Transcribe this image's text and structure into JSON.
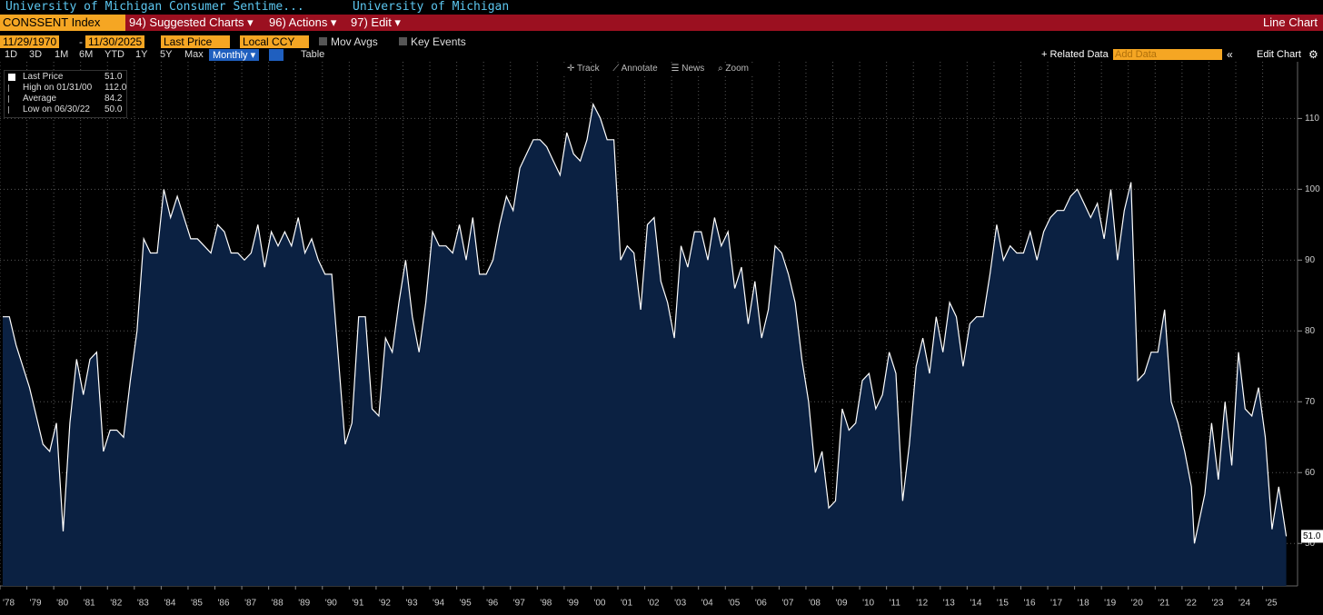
{
  "ui": {
    "title": "University of Michigan Consumer Sentime...",
    "source": "University of Michigan",
    "ticker": "CONSSENT Index",
    "menu": [
      "94) Suggested Charts ▾",
      "96) Actions ▾",
      "97) Edit ▾"
    ],
    "chart_kind": "Line Chart",
    "start_date": "11/29/1970",
    "date_sep": "-",
    "end_date": "11/30/2025",
    "field": "Last Price",
    "currency": "Local CCY",
    "mov_avgs": "Mov Avgs",
    "key_events": "Key Events",
    "ranges": [
      "1D",
      "3D",
      "1M",
      "6M",
      "YTD",
      "1Y",
      "5Y",
      "Max"
    ],
    "frequency": "Monthly ▾",
    "table": "Table",
    "related_data": "+ Related Data",
    "add_data": "Add Data",
    "edit_chart": "Edit Chart",
    "tools": [
      "Track",
      "Annotate",
      "News",
      "Zoom"
    ]
  },
  "chart_data": {
    "type": "area",
    "legend_stats": [
      {
        "label": "Last Price",
        "value": "51.0"
      },
      {
        "label": "High on 01/31/00",
        "value": "112.0"
      },
      {
        "label": "Average",
        "value": "84.2"
      },
      {
        "label": "Low on 06/30/22",
        "value": "50.0"
      }
    ],
    "last_value_label": "51.0",
    "color": "#ffffff",
    "fill": "#0b2142",
    "grid": true,
    "ylim": [
      44,
      118
    ],
    "yticks": [
      50,
      60,
      70,
      80,
      90,
      100,
      110
    ],
    "xlim": [
      1978.0,
      2026.3
    ],
    "xticks": [
      {
        "value": 1978,
        "label": "'78"
      },
      {
        "value": 1979,
        "label": "'79"
      },
      {
        "value": 1980,
        "label": "'80"
      },
      {
        "value": 1981,
        "label": "'81"
      },
      {
        "value": 1982,
        "label": "'82"
      },
      {
        "value": 1983,
        "label": "'83"
      },
      {
        "value": 1984,
        "label": "'84"
      },
      {
        "value": 1985,
        "label": "'85"
      },
      {
        "value": 1986,
        "label": "'86"
      },
      {
        "value": 1987,
        "label": "'87"
      },
      {
        "value": 1988,
        "label": "'88"
      },
      {
        "value": 1989,
        "label": "'89"
      },
      {
        "value": 1990,
        "label": "'90"
      },
      {
        "value": 1991,
        "label": "'91"
      },
      {
        "value": 1992,
        "label": "'92"
      },
      {
        "value": 1993,
        "label": "'93"
      },
      {
        "value": 1994,
        "label": "'94"
      },
      {
        "value": 1995,
        "label": "'95"
      },
      {
        "value": 1996,
        "label": "'96"
      },
      {
        "value": 1997,
        "label": "'97"
      },
      {
        "value": 1998,
        "label": "'98"
      },
      {
        "value": 1999,
        "label": "'99"
      },
      {
        "value": 2000,
        "label": "'00"
      },
      {
        "value": 2001,
        "label": "'01"
      },
      {
        "value": 2002,
        "label": "'02"
      },
      {
        "value": 2003,
        "label": "'03"
      },
      {
        "value": 2004,
        "label": "'04"
      },
      {
        "value": 2005,
        "label": "'05"
      },
      {
        "value": 2006,
        "label": "'06"
      },
      {
        "value": 2007,
        "label": "'07"
      },
      {
        "value": 2008,
        "label": "'08"
      },
      {
        "value": 2009,
        "label": "'09"
      },
      {
        "value": 2010,
        "label": "'10"
      },
      {
        "value": 2011,
        "label": "'11"
      },
      {
        "value": 2012,
        "label": "'12"
      },
      {
        "value": 2013,
        "label": "'13"
      },
      {
        "value": 2014,
        "label": "'14"
      },
      {
        "value": 2015,
        "label": "'15"
      },
      {
        "value": 2016,
        "label": "'16"
      },
      {
        "value": 2017,
        "label": "'17"
      },
      {
        "value": 2018,
        "label": "'18"
      },
      {
        "value": 2019,
        "label": "'19"
      },
      {
        "value": 2020,
        "label": "'20"
      },
      {
        "value": 2021,
        "label": "'21"
      },
      {
        "value": 2022,
        "label": "'22"
      },
      {
        "value": 2023,
        "label": "'23"
      },
      {
        "value": 2024,
        "label": "'24"
      },
      {
        "value": 2025,
        "label": "'25"
      }
    ],
    "x": [
      1978.1,
      1978.35,
      1978.6,
      1978.85,
      1979.1,
      1979.35,
      1979.6,
      1979.85,
      1980.1,
      1980.35,
      1980.6,
      1980.85,
      1981.1,
      1981.35,
      1981.6,
      1981.85,
      1982.1,
      1982.35,
      1982.6,
      1982.85,
      1983.1,
      1983.35,
      1983.6,
      1983.85,
      1984.1,
      1984.35,
      1984.6,
      1984.85,
      1985.1,
      1985.35,
      1985.6,
      1985.85,
      1986.1,
      1986.35,
      1986.6,
      1986.85,
      1987.1,
      1987.35,
      1987.6,
      1987.85,
      1988.1,
      1988.35,
      1988.6,
      1988.85,
      1989.1,
      1989.35,
      1989.6,
      1989.85,
      1990.1,
      1990.35,
      1990.6,
      1990.85,
      1991.1,
      1991.35,
      1991.6,
      1991.85,
      1992.1,
      1992.35,
      1992.6,
      1992.85,
      1993.1,
      1993.35,
      1993.6,
      1993.85,
      1994.1,
      1994.35,
      1994.6,
      1994.85,
      1995.1,
      1995.35,
      1995.6,
      1995.85,
      1996.1,
      1996.35,
      1996.6,
      1996.85,
      1997.1,
      1997.35,
      1997.6,
      1997.85,
      1998.1,
      1998.35,
      1998.6,
      1998.85,
      1999.1,
      1999.35,
      1999.6,
      1999.85,
      2000.08,
      2000.35,
      2000.6,
      2000.85,
      2001.1,
      2001.35,
      2001.6,
      2001.85,
      2002.1,
      2002.35,
      2002.6,
      2002.85,
      2003.1,
      2003.35,
      2003.6,
      2003.85,
      2004.1,
      2004.35,
      2004.6,
      2004.85,
      2005.1,
      2005.35,
      2005.6,
      2005.85,
      2006.1,
      2006.35,
      2006.6,
      2006.85,
      2007.1,
      2007.35,
      2007.6,
      2007.85,
      2008.1,
      2008.35,
      2008.6,
      2008.85,
      2009.1,
      2009.35,
      2009.6,
      2009.85,
      2010.1,
      2010.35,
      2010.6,
      2010.85,
      2011.1,
      2011.35,
      2011.6,
      2011.85,
      2012.1,
      2012.35,
      2012.6,
      2012.85,
      2013.1,
      2013.35,
      2013.6,
      2013.85,
      2014.1,
      2014.35,
      2014.6,
      2014.85,
      2015.1,
      2015.35,
      2015.6,
      2015.85,
      2016.1,
      2016.35,
      2016.6,
      2016.85,
      2017.1,
      2017.35,
      2017.6,
      2017.85,
      2018.1,
      2018.35,
      2018.6,
      2018.85,
      2019.1,
      2019.35,
      2019.6,
      2019.85,
      2020.1,
      2020.35,
      2020.6,
      2020.85,
      2021.1,
      2021.35,
      2021.6,
      2021.85,
      2022.1,
      2022.35,
      2022.46,
      2022.85,
      2023.1,
      2023.35,
      2023.6,
      2023.85,
      2024.1,
      2024.35,
      2024.6,
      2024.85,
      2025.1,
      2025.35,
      2025.6,
      2025.88
    ],
    "values": [
      82,
      82,
      78,
      75,
      72,
      68,
      64,
      63,
      67,
      51.7,
      67,
      76,
      71,
      76,
      77,
      63,
      66,
      66,
      65,
      73,
      80,
      93,
      91,
      91,
      100,
      96,
      99,
      96,
      93,
      93,
      92,
      91,
      95,
      94,
      91,
      91,
      90,
      91,
      95,
      89,
      94,
      92,
      94,
      92,
      96,
      91,
      93,
      90,
      88,
      88,
      76,
      64,
      67,
      82,
      82,
      69,
      68,
      79,
      77,
      84,
      90,
      82,
      77,
      84,
      94,
      92,
      92,
      91,
      95,
      90,
      96,
      88,
      88,
      90,
      95,
      99,
      97,
      103,
      105,
      107,
      107,
      106,
      104,
      102,
      108,
      105,
      104,
      107,
      112,
      110,
      107,
      107,
      90,
      92,
      91,
      83,
      95,
      96,
      87,
      84,
      79,
      92,
      89,
      94,
      94,
      90,
      96,
      92,
      94,
      86,
      89,
      81,
      87,
      79,
      83,
      92,
      91,
      88,
      84,
      76,
      70,
      60,
      63,
      55,
      56,
      69,
      66,
      67,
      73,
      74,
      69,
      71,
      77,
      74,
      56,
      64,
      75,
      79,
      74,
      82,
      77,
      84,
      82,
      75,
      81,
      82,
      82,
      88,
      95,
      90,
      92,
      91,
      91,
      94,
      90,
      94,
      96,
      97,
      97,
      99,
      100,
      98,
      96,
      98,
      93,
      100,
      90,
      97,
      101,
      73,
      74,
      77,
      77,
      83,
      70,
      67,
      63,
      58,
      50,
      57,
      67,
      59,
      70,
      61,
      77,
      69,
      68,
      72,
      65,
      52,
      58,
      51
    ]
  }
}
